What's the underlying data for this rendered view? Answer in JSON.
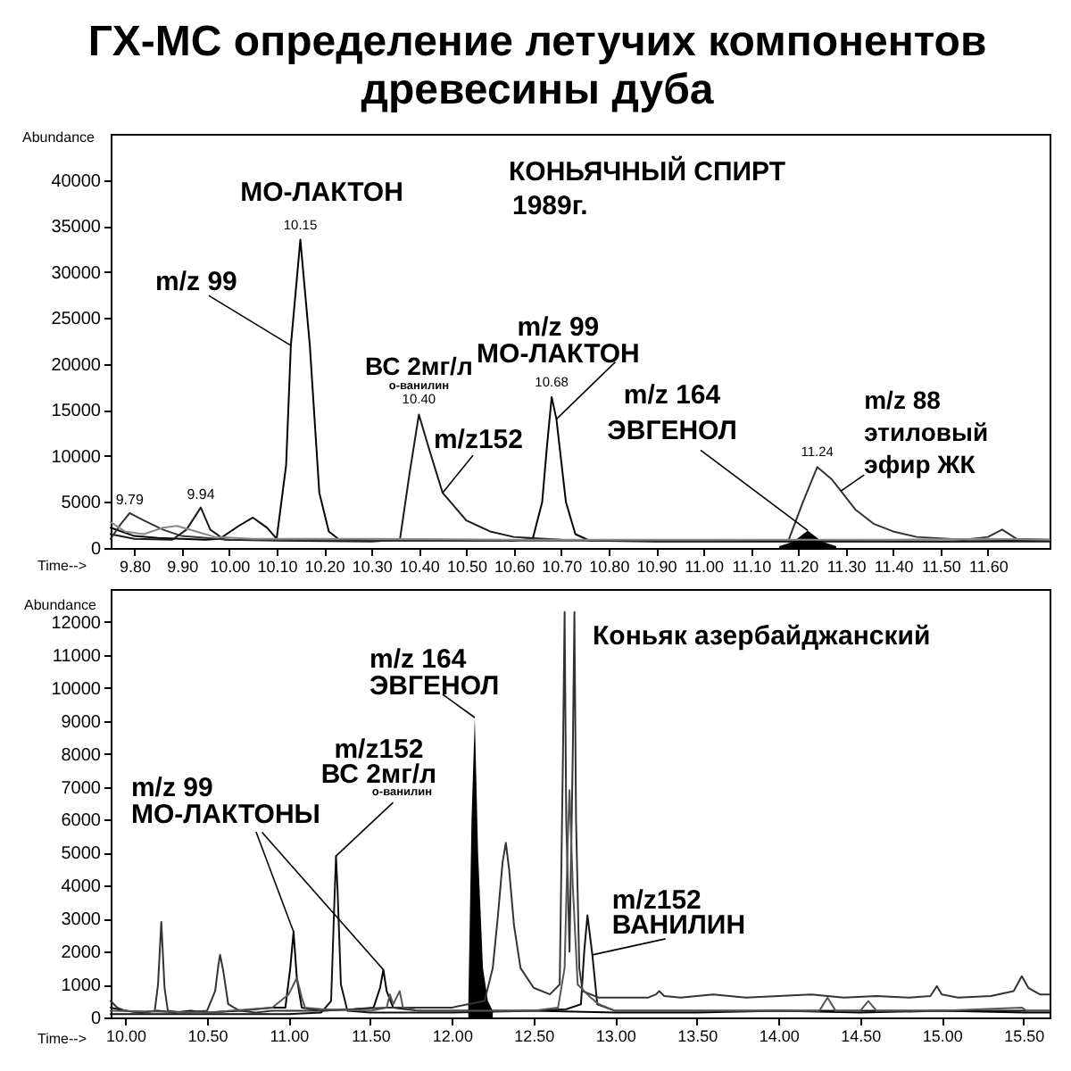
{
  "chart_data": [
    {
      "type": "line",
      "title": "ГХ-МС определение летучих компонентов\nдревесины дуба",
      "xlabel": "Time-->",
      "ylabel": "Abundance",
      "xlim": [
        9.75,
        11.73
      ],
      "ylim": [
        0,
        45000
      ],
      "xticks": [
        {
          "value": 9.8,
          "label": "9.80"
        },
        {
          "value": 9.9,
          "label": "9.90"
        },
        {
          "value": 10.0,
          "label": "10.00"
        },
        {
          "value": 10.1,
          "label": "10.10"
        },
        {
          "value": 10.2,
          "label": "10.20"
        },
        {
          "value": 10.3,
          "label": "10.30"
        },
        {
          "value": 10.4,
          "label": "10.40"
        },
        {
          "value": 10.5,
          "label": "10.50"
        },
        {
          "value": 10.6,
          "label": "10.60"
        },
        {
          "value": 10.7,
          "label": "10.70"
        },
        {
          "value": 10.8,
          "label": "10.80"
        },
        {
          "value": 10.9,
          "label": "10.90"
        },
        {
          "value": 11.0,
          "label": "11.00"
        },
        {
          "value": 11.1,
          "label": "11.10"
        },
        {
          "value": 11.2,
          "label": "11.20"
        },
        {
          "value": 11.3,
          "label": "11.30"
        },
        {
          "value": 11.4,
          "label": "11.40"
        },
        {
          "value": 11.5,
          "label": "11.50"
        },
        {
          "value": 11.6,
          "label": "11.60"
        }
      ],
      "yticks": [
        0,
        5000,
        10000,
        15000,
        20000,
        25000,
        30000,
        35000,
        40000
      ],
      "series": [
        {
          "color": "#000000",
          "x": [
            9.75,
            9.8,
            9.85,
            9.9,
            9.95,
            9.98,
            10.02,
            10.05,
            10.08,
            10.1,
            10.12,
            10.13,
            10.15,
            10.17,
            10.19,
            10.21,
            10.23,
            10.3,
            10.4,
            10.5,
            10.6,
            10.64,
            10.66,
            10.67,
            10.68,
            10.69,
            10.71,
            10.73,
            10.76,
            10.9,
            11.1,
            11.3,
            11.5,
            11.7,
            11.73
          ],
          "values": [
            2200,
            1300,
            1100,
            1000,
            900,
            1000,
            2400,
            3300,
            2200,
            1000,
            9000,
            22000,
            33500,
            22000,
            6000,
            1800,
            1000,
            800,
            800,
            800,
            800,
            1000,
            5000,
            11000,
            16400,
            14000,
            5000,
            1500,
            800,
            700,
            700,
            700,
            700,
            800,
            800
          ]
        },
        {
          "color": "#1a1a1a",
          "x": [
            9.75,
            9.8,
            9.88,
            9.91,
            9.94,
            9.96,
            9.99,
            10.1,
            10.3,
            10.36,
            10.38,
            10.4,
            10.42,
            10.45,
            10.5,
            10.55,
            10.6,
            10.7,
            10.9,
            11.2,
            11.5,
            11.73
          ],
          "values": [
            1500,
            1000,
            900,
            2000,
            4400,
            2000,
            900,
            800,
            700,
            900,
            8000,
            14500,
            11000,
            6000,
            3000,
            1800,
            1200,
            900,
            800,
            800,
            700,
            700
          ]
        },
        {
          "color": "#333333",
          "x": [
            9.75,
            9.77,
            9.79,
            9.82,
            9.86,
            9.9,
            10.0,
            10.5,
            11.0,
            11.18,
            11.21,
            11.24,
            11.27,
            11.29,
            11.32,
            11.36,
            11.4,
            11.45,
            11.55,
            11.6,
            11.63,
            11.66,
            11.73
          ],
          "values": [
            1000,
            2500,
            3800,
            3000,
            2000,
            1300,
            900,
            800,
            800,
            900,
            5000,
            8800,
            7500,
            6200,
            4200,
            2600,
            1800,
            1200,
            900,
            1200,
            2000,
            1000,
            900
          ]
        },
        {
          "type": "area",
          "color": "#000000",
          "x": [
            11.16,
            11.19,
            11.22,
            11.25,
            11.28
          ],
          "values": [
            200,
            700,
            1900,
            700,
            200
          ]
        },
        {
          "color": "#888888",
          "x": [
            9.75,
            9.78,
            9.82,
            9.86,
            9.89,
            9.93,
            9.97,
            10.05,
            10.3,
            10.6,
            11.0,
            11.4,
            11.6,
            11.73
          ],
          "values": [
            2800,
            1800,
            1500,
            2200,
            2400,
            1800,
            1200,
            1000,
            1000,
            900,
            900,
            900,
            1000,
            900
          ]
        }
      ],
      "annotations": [
        "КОНЬЯЧНЫЙ СПИРТ",
        "1989г.",
        {
          "text": "МО-ЛАКТОН",
          "x": 10.15,
          "y": 33500
        },
        {
          "text": "10.15",
          "x": 10.15,
          "y": 33500
        },
        {
          "text": "m/z 99",
          "x": 10.13,
          "y": 22000
        },
        {
          "text": "9.79",
          "x": 9.79,
          "y": 3800
        },
        {
          "text": "9.94",
          "x": 9.94,
          "y": 4400
        },
        {
          "text": "ВС 2мг/л",
          "x": 10.4,
          "y": 14500
        },
        {
          "text": "о-ванилин",
          "x": 10.4,
          "y": 14500
        },
        {
          "text": "10.40",
          "x": 10.4,
          "y": 14500
        },
        {
          "text": "m/z152",
          "x": 10.45,
          "y": 6000
        },
        {
          "text": "m/z 99\nМО-ЛАКТОН",
          "x": 10.69,
          "y": 14000
        },
        {
          "text": "10.68",
          "x": 10.68,
          "y": 16400
        },
        {
          "text": "m/z 164\nЭВГЕНОЛ",
          "x": 11.22,
          "y": 1900
        },
        {
          "text": "m/z 88\nэтиловый\nэфир ЖК",
          "x": 11.29,
          "y": 6200
        },
        {
          "text": "11.24",
          "x": 11.24,
          "y": 8800
        }
      ]
    },
    {
      "type": "line",
      "xlabel": "Time-->",
      "ylabel": "Abundance",
      "xlim": [
        9.91,
        15.66
      ],
      "ylim": [
        0,
        13000
      ],
      "xticks": [
        {
          "value": 10.0,
          "label": "10.00"
        },
        {
          "value": 10.5,
          "label": "10.50"
        },
        {
          "value": 11.0,
          "label": "11.00"
        },
        {
          "value": 11.5,
          "label": "11.50"
        },
        {
          "value": 12.0,
          "label": "12.00"
        },
        {
          "value": 12.5,
          "label": "12.50"
        },
        {
          "value": 13.0,
          "label": "13.00"
        },
        {
          "value": 13.5,
          "label": "13.50"
        },
        {
          "value": 14.0,
          "label": "14.00"
        },
        {
          "value": 14.5,
          "label": "14.50"
        },
        {
          "value": 15.0,
          "label": "15.00"
        },
        {
          "value": 15.5,
          "label": "15.50"
        }
      ],
      "yticks": [
        0,
        1000,
        2000,
        3000,
        4000,
        5000,
        6000,
        7000,
        8000,
        9000,
        10000,
        11000,
        12000
      ],
      "series": [
        {
          "color": "#000000",
          "x": [
            9.91,
            10.0,
            10.1,
            10.2,
            10.3,
            10.4,
            10.5,
            10.7,
            10.9,
            10.98,
            11.01,
            11.03,
            11.05,
            11.08,
            11.2,
            11.4,
            11.52,
            11.56,
            11.58,
            11.6,
            11.64,
            11.8,
            12.0,
            12.5,
            13.0,
            13.5,
            14.0,
            14.5,
            15.0,
            15.5,
            15.66
          ],
          "values": [
            300,
            200,
            150,
            200,
            150,
            200,
            150,
            200,
            300,
            300,
            1500,
            2600,
            1200,
            300,
            200,
            250,
            300,
            900,
            1450,
            800,
            300,
            200,
            200,
            200,
            150,
            150,
            200,
            150,
            200,
            150,
            150
          ]
        },
        {
          "color": "#111111",
          "x": [
            9.91,
            10.5,
            11.0,
            11.2,
            11.26,
            11.28,
            11.29,
            11.3,
            11.32,
            11.36,
            11.5,
            12.0,
            12.5,
            12.7,
            12.79,
            12.81,
            12.83,
            12.86,
            12.89,
            13.0,
            13.5,
            14.0,
            14.5,
            15.0,
            15.5,
            15.66
          ],
          "values": [
            100,
            100,
            100,
            150,
            500,
            3500,
            4900,
            3800,
            1000,
            200,
            150,
            150,
            200,
            250,
            400,
            2000,
            3100,
            1900,
            400,
            200,
            200,
            200,
            200,
            200,
            200,
            200
          ]
        },
        {
          "type": "area",
          "color": "#000000",
          "x": [
            12.1,
            12.12,
            12.14,
            12.16,
            12.19,
            12.22,
            12.25
          ],
          "values": [
            300,
            6000,
            9100,
            5000,
            1500,
            500,
            200
          ]
        },
        {
          "color": "#333333",
          "x": [
            9.91,
            9.95,
            10.0,
            10.1,
            10.18,
            10.2,
            10.22,
            10.24,
            10.26,
            10.35,
            10.5,
            10.55,
            10.57,
            10.58,
            10.6,
            10.63,
            10.7,
            10.8,
            10.9,
            11.0,
            11.2,
            11.4,
            11.6,
            11.8,
            12.0,
            12.2,
            12.25,
            12.28,
            12.31,
            12.33,
            12.35,
            12.38,
            12.42,
            12.5,
            12.6,
            12.66,
            12.68,
            12.69,
            12.7,
            12.72,
            12.74,
            12.75,
            12.76,
            12.78,
            12.8,
            12.9,
            13.0,
            13.2,
            13.25,
            13.27,
            13.3,
            13.4,
            13.6,
            13.8,
            14.0,
            14.2,
            14.4,
            14.6,
            14.8,
            14.93,
            14.97,
            15.0,
            15.1,
            15.3,
            15.44,
            15.49,
            15.53,
            15.6,
            15.66
          ],
          "values": [
            500,
            300,
            200,
            150,
            200,
            1000,
            2900,
            900,
            200,
            150,
            200,
            800,
            1600,
            1900,
            1400,
            400,
            200,
            150,
            200,
            200,
            200,
            250,
            300,
            300,
            300,
            500,
            1500,
            3000,
            4700,
            5300,
            4500,
            2800,
            1500,
            900,
            700,
            1000,
            8000,
            12300,
            6000,
            2000,
            8000,
            12300,
            6000,
            1500,
            800,
            600,
            600,
            600,
            700,
            800,
            650,
            600,
            700,
            600,
            650,
            700,
            600,
            650,
            600,
            650,
            950,
            700,
            600,
            650,
            800,
            1250,
            900,
            700,
            700
          ]
        },
        {
          "color": "#555555",
          "x": [
            9.91,
            10.5,
            10.9,
            10.95,
            11.0,
            11.05,
            11.08,
            11.1,
            11.2,
            11.5,
            11.6,
            11.62,
            11.64,
            11.66,
            11.68,
            11.7,
            11.8,
            12.0,
            12.5,
            12.65,
            12.69,
            12.71,
            12.72,
            12.74,
            12.77,
            12.85,
            12.9,
            13.0,
            13.5,
            14.0,
            14.25,
            14.3,
            14.35,
            14.5,
            14.55,
            14.6,
            15.0,
            15.49,
            15.52,
            15.66
          ],
          "values": [
            200,
            150,
            300,
            500,
            700,
            1200,
            600,
            300,
            250,
            200,
            300,
            700,
            400,
            600,
            800,
            300,
            200,
            200,
            200,
            300,
            1500,
            5500,
            6900,
            4000,
            1000,
            600,
            400,
            200,
            200,
            200,
            200,
            600,
            200,
            200,
            500,
            200,
            200,
            300,
            200,
            200
          ]
        }
      ],
      "annotations": [
        "Коньяк азербайджанский",
        {
          "text": "m/z 164\nЭВГЕНОЛ",
          "x": 12.14,
          "y": 9100
        },
        {
          "text": "m/z152\nВС 2мг/л",
          "x": 11.29,
          "y": 4900
        },
        {
          "text": "о-ванилин",
          "x": 11.29,
          "y": 4900
        },
        {
          "text": "m/z 99\nМО-ЛАКТОНЫ",
          "x": 11.03,
          "y": 2600
        },
        {
          "text": "m/z152\nВАНИЛИН",
          "x": 12.86,
          "y": 1900
        }
      ]
    }
  ]
}
